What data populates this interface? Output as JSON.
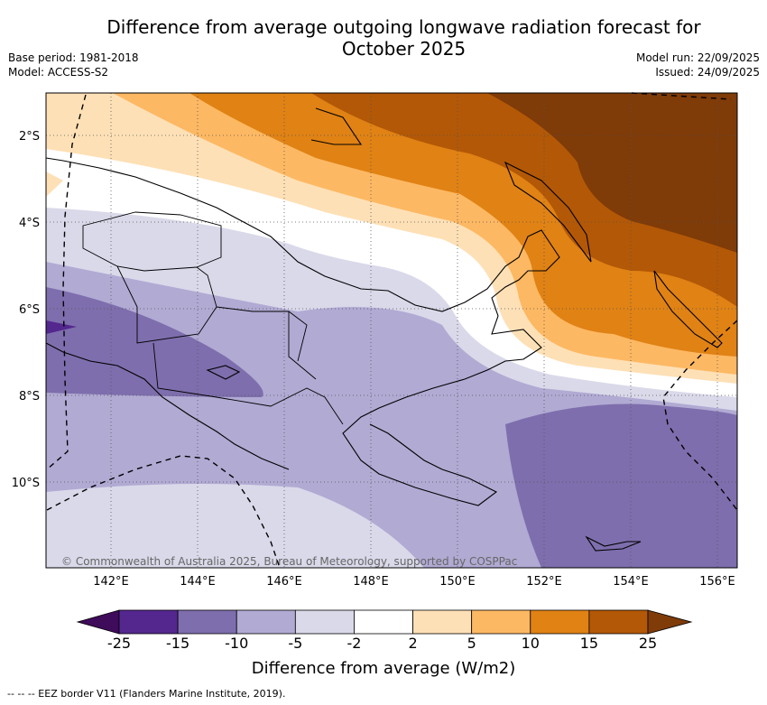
{
  "title": {
    "line1": "Difference from average outgoing longwave radiation forecast for",
    "line2": "October 2025"
  },
  "meta": {
    "base_period": "Base period: 1981-2018",
    "model": "Model: ACCESS-S2",
    "model_run": "Model run: 22/09/2025",
    "issued": "Issued: 24/09/2025"
  },
  "map": {
    "lat_labels": [
      "2°S",
      "4°S",
      "6°S",
      "8°S",
      "10°S"
    ],
    "lon_labels": [
      "142°E",
      "144°E",
      "146°E",
      "148°E",
      "150°E",
      "152°E",
      "154°E",
      "156°E"
    ],
    "credit": "© Commonwealth of Australia 2025, Bureau of Meteorology, supported by COSPPac"
  },
  "colorbar": {
    "ticks": [
      "-25",
      "-15",
      "-10",
      "-5",
      "-2",
      "2",
      "5",
      "10",
      "15",
      "25"
    ],
    "colors": [
      "#3f0b5b",
      "#54278f",
      "#7e6ead",
      "#b1aad3",
      "#d9d9ea",
      "#ffffff",
      "#fee0b6",
      "#fdb863",
      "#e08214",
      "#b35806",
      "#7f3b08"
    ],
    "title": "Difference from average (W/m2)"
  },
  "footer": {
    "eez": "-- -- -- EEZ border V11 (Flanders Marine Institute, 2019)."
  }
}
